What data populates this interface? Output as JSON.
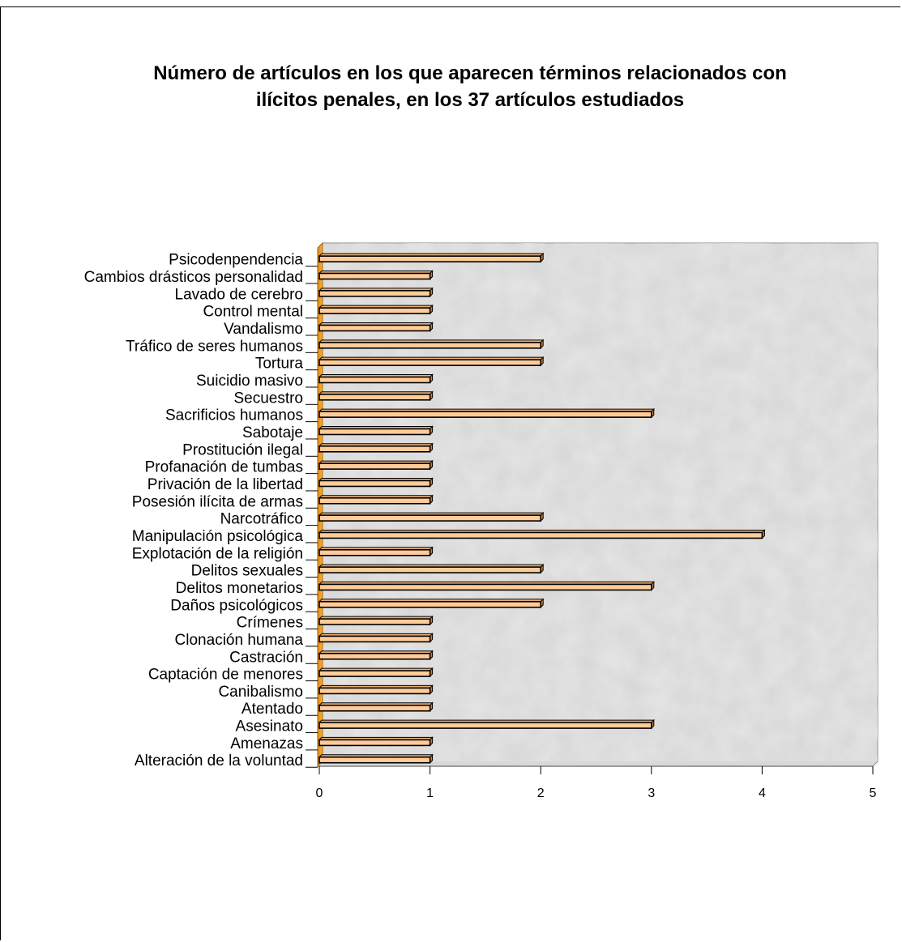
{
  "chart_data": {
    "type": "bar",
    "orientation": "horizontal",
    "title": "Número de artículos en los que aparecen términos relacionados con ilícitos penales, en los 37 artículos estudiados",
    "categories": [
      "Alteración de la voluntad",
      "Amenazas",
      "Asesinato",
      "Atentado",
      "Canibalismo",
      "Captación de menores",
      "Castración",
      "Clonación humana",
      "Crímenes",
      "Daños psicológicos",
      "Delitos monetarios",
      "Delitos sexuales",
      "Explotación de la religión",
      "Manipulación psicológica",
      "Narcotráfico",
      "Posesión ilícita de armas",
      "Privación de la libertad",
      "Profanación de tumbas",
      "Prostitución ilegal",
      "Sabotaje",
      "Sacrificios humanos",
      "Secuestro",
      "Suicidio masivo",
      "Tortura",
      "Tráfico de seres humanos",
      "Vandalismo",
      "Control mental",
      "Lavado de cerebro",
      "Cambios drásticos personalidad",
      "Psicodenpendencia"
    ],
    "values": [
      1,
      1,
      3,
      1,
      1,
      1,
      1,
      1,
      1,
      2,
      3,
      2,
      1,
      4,
      2,
      1,
      1,
      1,
      1,
      1,
      3,
      1,
      1,
      2,
      2,
      1,
      1,
      1,
      1,
      2
    ],
    "xlim": [
      0,
      5
    ],
    "xticks": [
      "0",
      "1",
      "2",
      "3",
      "4",
      "5"
    ],
    "xlabel": "",
    "ylabel": "",
    "grid": false,
    "legend": "none",
    "colors": {
      "bar_fill": "#FFCC99",
      "bar_edge": "#000000",
      "axis_wall": "#F7A020",
      "plot_background": "#D8D8D8"
    }
  }
}
